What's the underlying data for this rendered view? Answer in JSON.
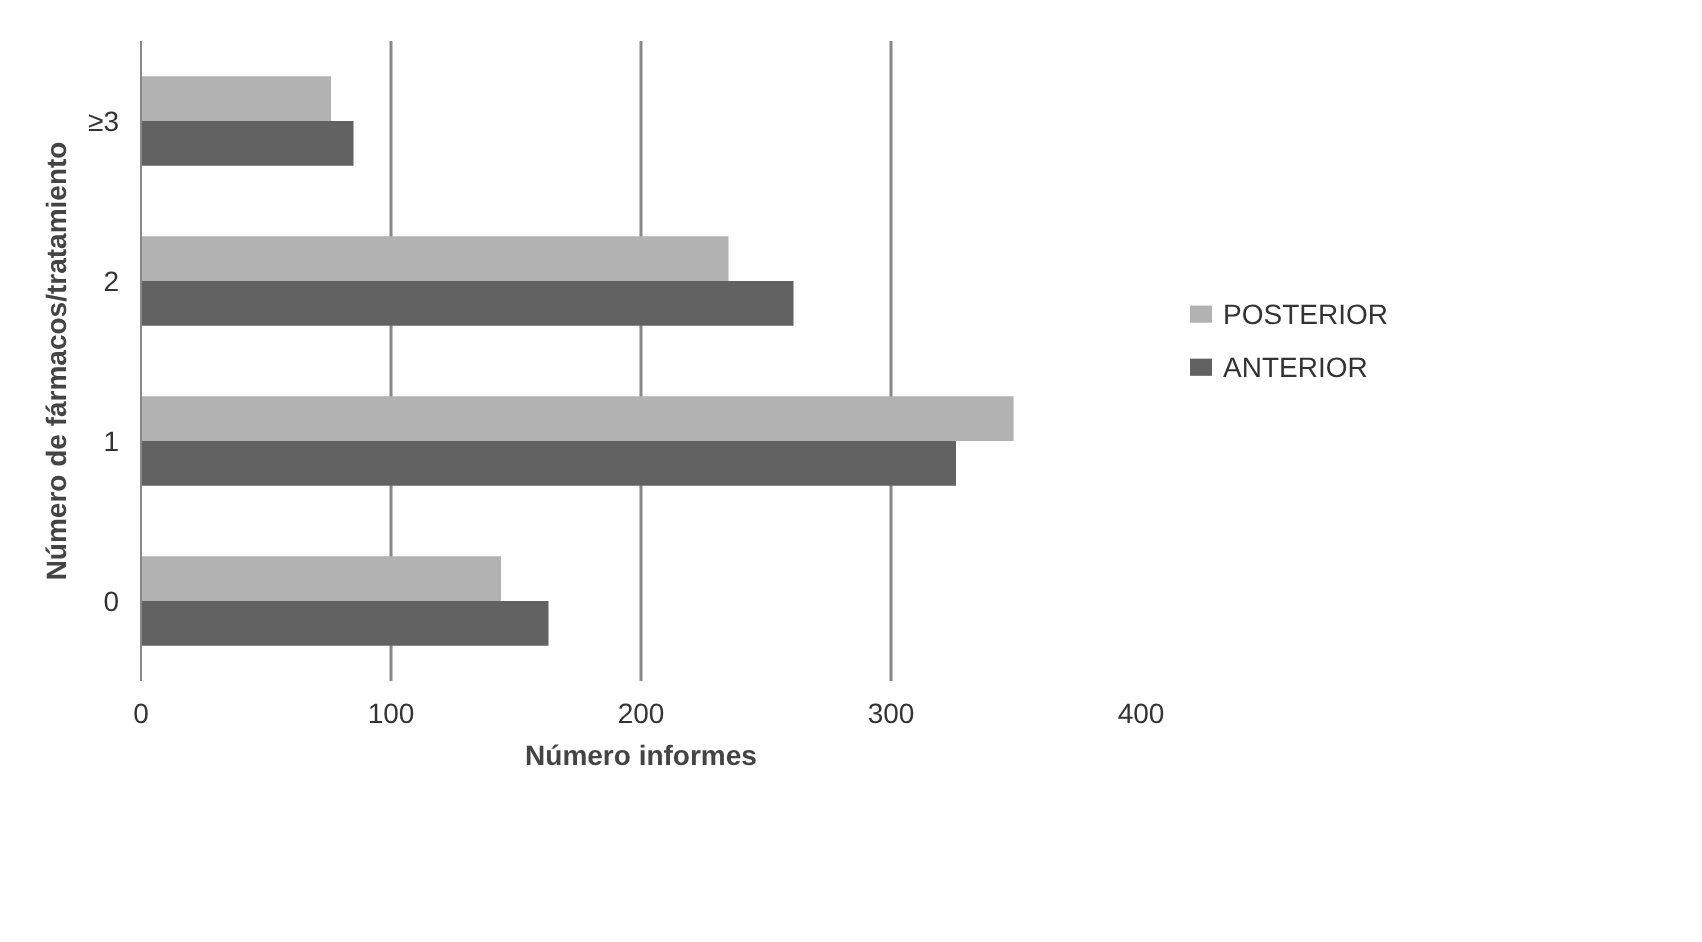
{
  "chart_data": {
    "type": "bar",
    "orientation": "horizontal",
    "xlabel": "Número informes",
    "ylabel": "Número de fármacos/tratamiento",
    "categories": [
      "≥3",
      "2",
      "1",
      "0"
    ],
    "series": [
      {
        "name": "POSTERIOR",
        "color": "#b2b2b2",
        "values": [
          76,
          235,
          349,
          144
        ]
      },
      {
        "name": "ANTERIOR",
        "color": "#626262",
        "values": [
          85,
          261,
          326,
          163
        ]
      }
    ],
    "xlim": [
      0,
      400
    ],
    "xticks": [
      0,
      100,
      200,
      300,
      400
    ],
    "grid": "x",
    "legend": "right"
  }
}
